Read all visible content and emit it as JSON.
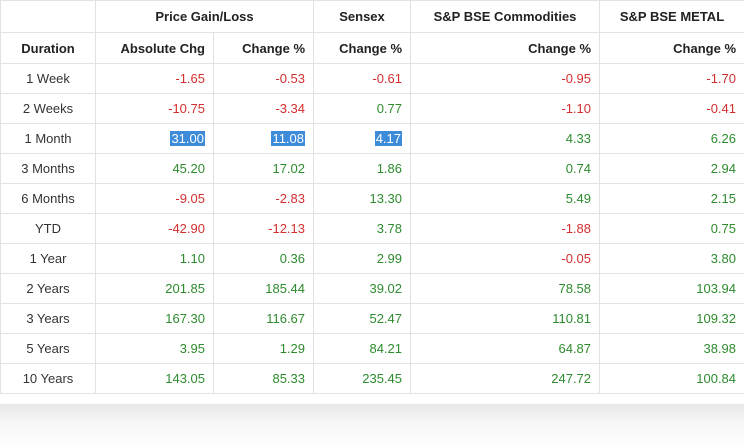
{
  "header": {
    "group_price": "Price Gain/Loss",
    "group_sensex": "Sensex",
    "group_commodities": "S&P BSE Commodities",
    "group_metal": "S&P BSE METAL",
    "col_duration": "Duration",
    "col_abs": "Absolute Chg",
    "col_chg": "Change %",
    "col_sensex": "Change %",
    "col_commodities": "Change %",
    "col_metal": "Change %"
  },
  "colors": {
    "positive": "#2e8b2e",
    "negative": "#d32f2f",
    "selection": "#3d8bd9"
  },
  "rows": [
    {
      "duration": "1 Week",
      "abs": "-1.65",
      "chg": "-0.53",
      "sensex": "-0.61",
      "commodities": "-0.95",
      "metal": "-1.70"
    },
    {
      "duration": "2 Weeks",
      "abs": "-10.75",
      "chg": "-3.34",
      "sensex": "0.77",
      "commodities": "-1.10",
      "metal": "-0.41"
    },
    {
      "duration": "1 Month",
      "abs": "31.00",
      "chg": "11.08",
      "sensex": "4.17",
      "commodities": "4.33",
      "metal": "6.26"
    },
    {
      "duration": "3 Months",
      "abs": "45.20",
      "chg": "17.02",
      "sensex": "1.86",
      "commodities": "0.74",
      "metal": "2.94"
    },
    {
      "duration": "6 Months",
      "abs": "-9.05",
      "chg": "-2.83",
      "sensex": "13.30",
      "commodities": "5.49",
      "metal": "2.15"
    },
    {
      "duration": "YTD",
      "abs": "-42.90",
      "chg": "-12.13",
      "sensex": "3.78",
      "commodities": "-1.88",
      "metal": "0.75"
    },
    {
      "duration": "1 Year",
      "abs": "1.10",
      "chg": "0.36",
      "sensex": "2.99",
      "commodities": "-0.05",
      "metal": "3.80"
    },
    {
      "duration": "2 Years",
      "abs": "201.85",
      "chg": "185.44",
      "sensex": "39.02",
      "commodities": "78.58",
      "metal": "103.94"
    },
    {
      "duration": "3 Years",
      "abs": "167.30",
      "chg": "116.67",
      "sensex": "52.47",
      "commodities": "110.81",
      "metal": "109.32"
    },
    {
      "duration": "5 Years",
      "abs": "3.95",
      "chg": "1.29",
      "sensex": "84.21",
      "commodities": "64.87",
      "metal": "38.98"
    },
    {
      "duration": "10 Years",
      "abs": "143.05",
      "chg": "85.33",
      "sensex": "235.45",
      "commodities": "247.72",
      "metal": "100.84"
    }
  ],
  "selected_row": "1 Month"
}
